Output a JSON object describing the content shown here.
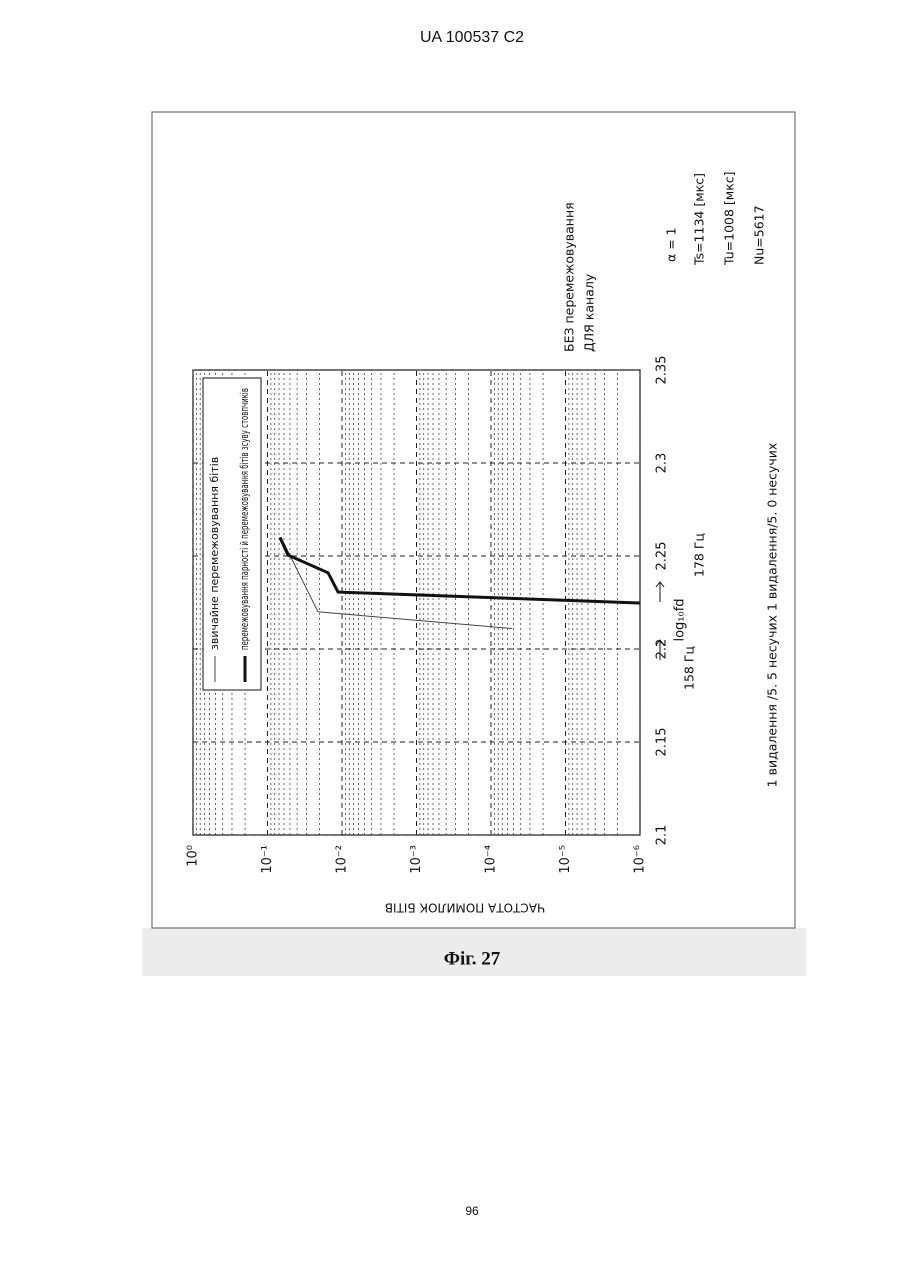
{
  "header": "UA   100537   C2",
  "caption": "Фіг. 27",
  "page_number": "96",
  "chart_data": {
    "type": "line",
    "x_label": "log₁₀fd",
    "y_label": "ЧАСТОТА ПОМИЛОК БІТІВ",
    "xlim": [
      2.1,
      2.35
    ],
    "xticks": [
      2.1,
      2.15,
      2.2,
      2.25,
      2.3,
      2.35
    ],
    "ylim": [
      1e-06,
      1
    ],
    "log_y": true,
    "yticks": [
      {
        "value": 1,
        "label": "10⁰"
      },
      {
        "value": 0.1,
        "label": "10⁻¹"
      },
      {
        "value": 0.01,
        "label": "10⁻²"
      },
      {
        "value": 0.001,
        "label": "10⁻³"
      },
      {
        "value": 0.0001,
        "label": "10⁻⁴"
      },
      {
        "value": 1e-05,
        "label": "10⁻⁵"
      },
      {
        "value": 1e-06,
        "label": "10⁻⁶"
      }
    ],
    "grid": true,
    "legend": "upper right",
    "series": [
      {
        "name": "звичайне перемежовування бітів",
        "color": "#444444",
        "width": 1,
        "x": [
          2.259,
          2.22,
          2.211
        ],
        "values": [
          0.064,
          0.021,
          5.2e-05
        ]
      },
      {
        "name": "перемежовування парності й перемежовування бітів зсуву стовпчиків",
        "color": "#111111",
        "width": 3,
        "x": [
          2.26,
          2.2505,
          2.241,
          2.2306,
          2.2247
        ],
        "values": [
          0.068,
          0.053,
          0.0154,
          0.0113,
          1e-06
        ]
      }
    ],
    "annotations": [
      "158 Гц",
      "178 Гц",
      "1 видалення /5. 5 несучих  1 видалення/5. 0 несучих",
      "БЕЗ перемежовування",
      "ДЛЯ каналу",
      "α = 1",
      "Ts=1134 [мкс]",
      "Tu=1008 [мкс]",
      "Nu=5617"
    ]
  }
}
